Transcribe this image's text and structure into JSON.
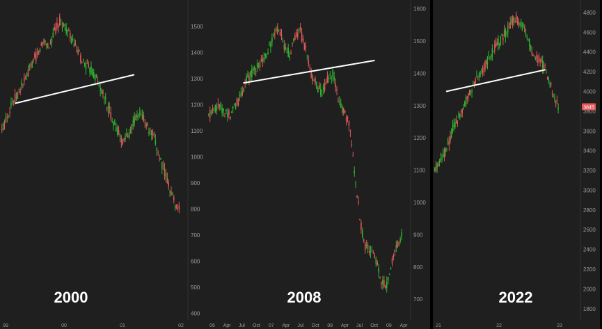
{
  "colors": {
    "background": "#000000",
    "panel": "#1f1f1f",
    "up": "#2fb52f",
    "down": "#e05a5a",
    "trendline": "#ffffff",
    "axis_text": "#9a9a9a",
    "price_badge": "#e05a5a"
  },
  "chart_data": [
    {
      "type": "candlestick",
      "label": "2000",
      "x_ticks": [
        "99",
        "00",
        "01",
        "02"
      ],
      "y_ticks": [
        "1500",
        "1400",
        "1300",
        "1200",
        "1100",
        "1000",
        "900",
        "800",
        "700",
        "600",
        "500",
        "400"
      ],
      "ylim": [
        380,
        1580
      ],
      "series": [
        {
          "values": [
            1100,
            1160,
            1210,
            1240,
            1280,
            1320,
            1370,
            1400,
            1450,
            1420,
            1480,
            1520,
            1500,
            1460,
            1420,
            1380,
            1350,
            1330,
            1300,
            1250,
            1200,
            1150,
            1100,
            1060,
            1080,
            1130,
            1160,
            1150,
            1100,
            1070,
            1000,
            940,
            880,
            820,
            800
          ]
        }
      ],
      "trendline": [
        [
          0.08,
          1205
        ],
        [
          0.72,
          1315
        ]
      ]
    },
    {
      "type": "candlestick",
      "label": "2008",
      "x_ticks": [
        "06",
        "Apr",
        "Jul",
        "Oct",
        "07",
        "Apr",
        "Jul",
        "Oct",
        "08",
        "Apr",
        "Jul",
        "Oct",
        "09",
        "Apr"
      ],
      "y_ticks": [
        "1600",
        "1500",
        "1400",
        "1300",
        "1200",
        "1100",
        "1000",
        "900",
        "800",
        "700"
      ],
      "ylim": [
        640,
        1610
      ],
      "series": [
        {
          "values": [
            1270,
            1290,
            1300,
            1280,
            1270,
            1300,
            1330,
            1380,
            1400,
            1420,
            1440,
            1470,
            1510,
            1540,
            1480,
            1460,
            1510,
            1530,
            1470,
            1400,
            1360,
            1340,
            1380,
            1400,
            1320,
            1280,
            1250,
            1100,
            950,
            860,
            850,
            820,
            760,
            740,
            820,
            870,
            900
          ]
        }
      ],
      "trendline": [
        [
          0.18,
          1370
        ],
        [
          0.83,
          1440
        ]
      ]
    },
    {
      "type": "candlestick",
      "label": "2022",
      "x_ticks": [
        "21",
        "22",
        "23"
      ],
      "y_ticks": [
        "4800",
        "4600",
        "4400",
        "4200",
        "4000",
        "3800",
        "3600",
        "3400",
        "3200",
        "3000",
        "2800",
        "2600",
        "2400",
        "2200",
        "2000",
        "1800"
      ],
      "ylim": [
        1700,
        4870
      ],
      "last_price": "3845",
      "series": [
        {
          "values": [
            3200,
            3300,
            3380,
            3500,
            3650,
            3750,
            3850,
            3950,
            4050,
            4150,
            4230,
            4300,
            4400,
            4480,
            4550,
            4600,
            4700,
            4750,
            4680,
            4600,
            4450,
            4350,
            4300,
            4250,
            4100,
            3900,
            3845
          ]
        }
      ],
      "trendline": [
        [
          0.1,
          4000
        ],
        [
          0.85,
          4220
        ]
      ]
    }
  ]
}
